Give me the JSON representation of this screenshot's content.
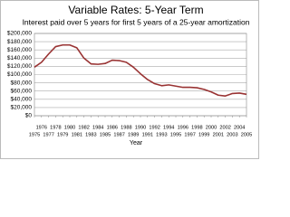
{
  "chart_data": {
    "type": "line",
    "title": "Variable Rates: 5-Year Term",
    "subtitle": "Interest paid over 5 years for first 5 years of a 25-year amortization",
    "x_label": "Year",
    "x": [
      1975,
      1976,
      1977,
      1978,
      1979,
      1980,
      1981,
      1982,
      1983,
      1984,
      1985,
      1986,
      1987,
      1988,
      1989,
      1990,
      1991,
      1992,
      1993,
      1994,
      1995,
      1996,
      1997,
      1998,
      1999,
      2000,
      2001,
      2002,
      2003,
      2004,
      2005
    ],
    "series": [
      {
        "color": "#993333",
        "values": [
          118000,
          130000,
          150000,
          168000,
          172000,
          172000,
          165000,
          140000,
          126000,
          125000,
          127000,
          135000,
          134000,
          130000,
          118000,
          102000,
          88000,
          78000,
          73000,
          75000,
          72000,
          69000,
          69000,
          68000,
          64000,
          58000,
          50000,
          48000,
          54000,
          55000,
          52000
        ]
      }
    ],
    "xlim": [
      1975,
      2005
    ],
    "xticks": [
      1975,
      1976,
      1977,
      1978,
      1979,
      1980,
      1981,
      1982,
      1983,
      1984,
      1985,
      1986,
      1987,
      1988,
      1989,
      1990,
      1991,
      1992,
      1993,
      1994,
      1995,
      1996,
      1997,
      1998,
      1999,
      2000,
      2001,
      2002,
      2003,
      2004,
      2005
    ],
    "ylim": [
      0,
      200000
    ],
    "yticks": [
      {
        "value": 0,
        "label": "$0"
      },
      {
        "value": 20000,
        "label": "$20,000"
      },
      {
        "value": 40000,
        "label": "$40,000"
      },
      {
        "value": 60000,
        "label": "$60,000"
      },
      {
        "value": 80000,
        "label": "$80,000"
      },
      {
        "value": 100000,
        "label": "$100,000"
      },
      {
        "value": 120000,
        "label": "$120,000"
      },
      {
        "value": 140000,
        "label": "$140,000"
      },
      {
        "value": 160000,
        "label": "$160,000"
      },
      {
        "value": 180000,
        "label": "$180,000"
      },
      {
        "value": 200000,
        "label": "$200,000"
      }
    ],
    "grid": true
  }
}
